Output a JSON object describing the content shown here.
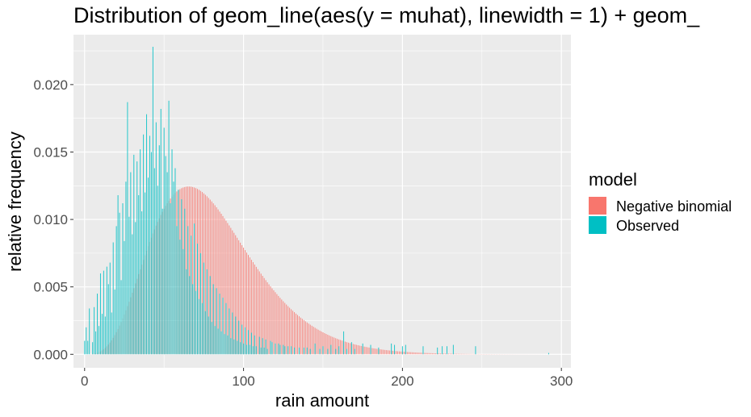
{
  "chart_data": {
    "type": "bar",
    "title": "Distribution of   geom_line(aes(y = muhat), linewidth = 1) +  geom_",
    "xlabel": "rain amount",
    "ylabel": "relative frequency",
    "xlim": [
      -7,
      306
    ],
    "ylim": [
      -0.001,
      0.0237
    ],
    "x_ticks": [
      0,
      100,
      200,
      300
    ],
    "x_tick_labels": [
      "0",
      "100",
      "200",
      "300"
    ],
    "y_ticks": [
      0.0,
      0.005,
      0.01,
      0.015,
      0.02
    ],
    "y_tick_labels": [
      "0.000",
      "0.005",
      "0.010",
      "0.015",
      "0.020"
    ],
    "grid": true,
    "legend": {
      "title": "model",
      "position": "right",
      "entries": [
        {
          "label": "Negative binomial",
          "color": "#F8766D"
        },
        {
          "label": "Observed",
          "color": "#00BFC4"
        }
      ]
    },
    "colors": {
      "negative_binomial": "#F8766D",
      "observed": "#00BFC4",
      "panel": "#EBEBEB",
      "grid": "#FFFFFF"
    },
    "series": [
      {
        "name": "Negative binomial",
        "color": "#F8766D",
        "model": {
          "family": "negative binomial",
          "mean": 80,
          "size": 5.7
        },
        "x_range": [
          0,
          292
        ]
      },
      {
        "name": "Observed",
        "color": "#00BFC4",
        "x": [
          0,
          1,
          2,
          3,
          5,
          6,
          7,
          8,
          9,
          10,
          11,
          12,
          13,
          14,
          15,
          16,
          17,
          18,
          19,
          20,
          21,
          22,
          23,
          24,
          25,
          26,
          27,
          28,
          29,
          30,
          31,
          32,
          33,
          34,
          35,
          36,
          37,
          38,
          39,
          40,
          41,
          42,
          43,
          44,
          45,
          46,
          47,
          48,
          49,
          50,
          51,
          52,
          53,
          54,
          55,
          56,
          57,
          58,
          59,
          60,
          61,
          62,
          63,
          64,
          65,
          66,
          67,
          68,
          69,
          70,
          71,
          72,
          73,
          74,
          75,
          76,
          77,
          78,
          79,
          80,
          81,
          82,
          83,
          84,
          85,
          86,
          87,
          88,
          89,
          90,
          91,
          92,
          93,
          94,
          95,
          96,
          97,
          98,
          99,
          100,
          101,
          102,
          103,
          104,
          105,
          106,
          107,
          108,
          110,
          111,
          112,
          113,
          114,
          115,
          117,
          118,
          120,
          122,
          123,
          125,
          126,
          128,
          130,
          132,
          135,
          138,
          140,
          142,
          145,
          148,
          150,
          153,
          155,
          158,
          160,
          163,
          165,
          168,
          170,
          175,
          180,
          185,
          193,
          195,
          200,
          202,
          213,
          222,
          225,
          228,
          232,
          246,
          292
        ],
        "values": [
          0.001,
          0.002,
          0.001,
          0.0034,
          0.0009,
          0.0035,
          0.0017,
          0.0045,
          0.0021,
          0.006,
          0.003,
          0.0062,
          0.0028,
          0.0065,
          0.0052,
          0.0068,
          0.0031,
          0.0083,
          0.0048,
          0.0095,
          0.0118,
          0.0105,
          0.0055,
          0.0112,
          0.0084,
          0.0128,
          0.0187,
          0.0102,
          0.0135,
          0.0089,
          0.0148,
          0.0098,
          0.0143,
          0.0118,
          0.0152,
          0.0106,
          0.0163,
          0.012,
          0.0178,
          0.0131,
          0.0162,
          0.015,
          0.0228,
          0.0138,
          0.0172,
          0.0125,
          0.0155,
          0.0182,
          0.0108,
          0.0168,
          0.0147,
          0.0135,
          0.0188,
          0.0112,
          0.0152,
          0.0128,
          0.0138,
          0.0095,
          0.0122,
          0.0085,
          0.0115,
          0.0078,
          0.0108,
          0.0063,
          0.0095,
          0.0058,
          0.0088,
          0.0052,
          0.0097,
          0.0047,
          0.0082,
          0.0041,
          0.0075,
          0.0038,
          0.0068,
          0.0032,
          0.0063,
          0.0028,
          0.0058,
          0.0024,
          0.0052,
          0.0021,
          0.0049,
          0.0019,
          0.0045,
          0.0017,
          0.0042,
          0.0015,
          0.0038,
          0.0014,
          0.0034,
          0.0012,
          0.0031,
          0.0011,
          0.0028,
          0.001,
          0.0025,
          0.0009,
          0.0022,
          0.0008,
          0.002,
          0.0007,
          0.0018,
          0.0007,
          0.0016,
          0.0006,
          0.0014,
          0.0006,
          0.0013,
          0.0005,
          0.0012,
          0.0005,
          0.0011,
          0.0004,
          0.001,
          0.0009,
          0.0008,
          0.0008,
          0.0007,
          0.0007,
          0.0006,
          0.0006,
          0.0006,
          0.0005,
          0.0005,
          0.0005,
          0.0005,
          0.0004,
          0.0008,
          0.0004,
          0.0006,
          0.0004,
          0.0007,
          0.0004,
          0.0006,
          0.0017,
          0.0004,
          0.0009,
          0.0004,
          0.0008,
          0.0007,
          0.0005,
          0.0008,
          0.0007,
          0.0006,
          0.0007,
          0.0006,
          0.0005,
          0.0006,
          0.0006,
          0.0007,
          0.0006,
          0.0001
        ]
      }
    ]
  }
}
